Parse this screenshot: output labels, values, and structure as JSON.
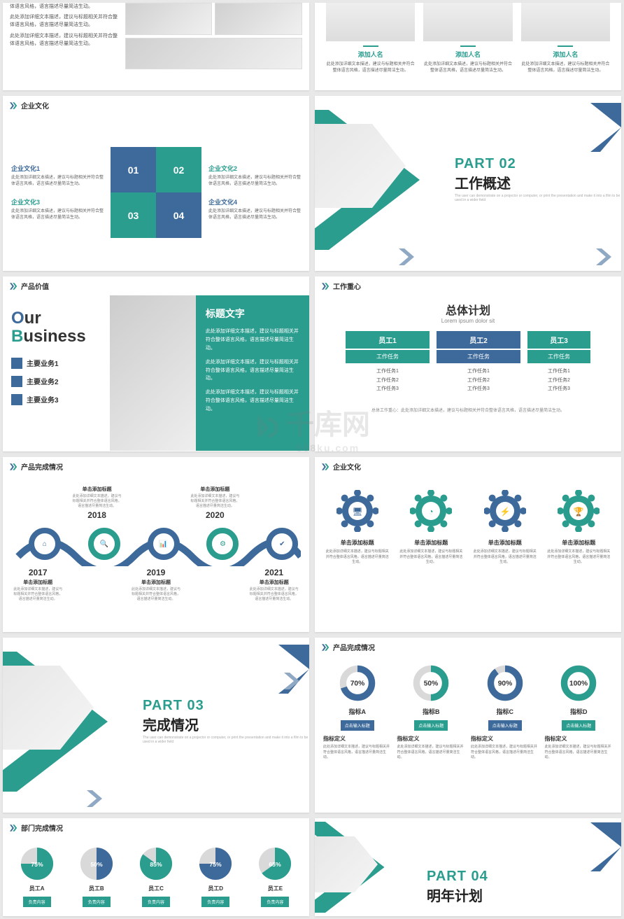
{
  "colors": {
    "teal": "#2a9d8f",
    "blue": "#3d6a9a",
    "grey": "#d0d0d0",
    "text": "#333333",
    "muted": "#777777"
  },
  "placeholder_long": "此处添加详细文本描述，建议与标题相关并符合整体语言风格，语言描述尽量简洁生动。",
  "placeholder_short": "此处添加详细文本描述，建议与标题相关并符合整体语言风格。",
  "slide1": {
    "lines": [
      "体语言风格，语言描述尽量简洁生动。",
      "此处添加详细文本描述，建议与标题相关并符合整体语言风格，语言描述尽量简洁生动。",
      "此处添加详细文本描述，建议与标题相关并符合整体语言风格，语言描述尽量简洁生动。"
    ]
  },
  "slide2": {
    "people": [
      {
        "name": "添加人名",
        "desc": "此处添加详细文本描述，建议与标题相关并符合整体语言风格，语言描述尽量简洁生动。"
      },
      {
        "name": "添加人名",
        "desc": "此处添加详细文本描述，建议与标题相关并符合整体语言风格，语言描述尽量简洁生动。"
      },
      {
        "name": "添加人名",
        "desc": "此处添加详细文本描述，建议与标题相关并符合整体语言风格，语言描述尽量简洁生动。"
      }
    ]
  },
  "slide3": {
    "header": "企业文化",
    "items": [
      {
        "title": "企业文化1",
        "color": "blue",
        "desc": "此处添加详细文本描述，建议与标题相关并符合整体语言风格，语言描述尽量简洁生动。"
      },
      {
        "title": "企业文化2",
        "color": "teal",
        "desc": "此处添加详细文本描述，建议与标题相关并符合整体语言风格，语言描述尽量简洁生动。"
      },
      {
        "title": "企业文化3",
        "color": "teal",
        "desc": "此处添加详细文本描述，建议与标题相关并符合整体语言风格，语言描述尽量简洁生动。"
      },
      {
        "title": "企业文化4",
        "color": "blue",
        "desc": "此处添加详细文本描述，建议与标题相关并符合整体语言风格，语言描述尽量简洁生动。"
      }
    ],
    "puzzle": [
      "01",
      "02",
      "03",
      "04"
    ]
  },
  "slide4": {
    "part_label": "PART 02",
    "part_title": "工作概述",
    "part_sub": "The user can demonstrate on a projector or computer, or print the presentation and make it into a film to be used in a wider field"
  },
  "slide5": {
    "header": "产品价值",
    "heading_o": "O",
    "heading_ur": "ur",
    "heading_b": "B",
    "heading_usiness": "usiness",
    "list": [
      "主要业务1",
      "主要业务2",
      "主要业务3"
    ],
    "right_title": "标题文字",
    "right_paras": [
      "此处添加详细文本描述，建议与标题相关并符合整体语言风格，语言描述尽量简洁生动。",
      "此处添加详细文本描述，建议与标题相关并符合整体语言风格，语言描述尽量简洁生动。",
      "此处添加详细文本描述，建议与标题相关并符合整体语言风格，语言描述尽量简洁生动。"
    ]
  },
  "slide6": {
    "header": "工作重心",
    "title": "总体计划",
    "subtitle": "Lorem ipsum dolor sit",
    "employees": [
      {
        "name": "员工1",
        "color": "teal",
        "task_label": "工作任务",
        "tasks": [
          "工作任务1",
          "工作任务2",
          "工作任务3"
        ]
      },
      {
        "name": "员工2",
        "color": "blue",
        "task_label": "工作任务",
        "tasks": [
          "工作任务1",
          "工作任务2",
          "工作任务3"
        ]
      },
      {
        "name": "员工3",
        "color": "teal",
        "task_label": "工作任务",
        "tasks": [
          "工作任务1",
          "工作任务2",
          "工作任务3"
        ],
        "thin": true
      }
    ],
    "footer": "总体工作重心：此处添加详细文本描述，建议与标题相关并符合整体语言风格，语言描述尽量简洁生动。"
  },
  "slide7": {
    "header": "产品完成情况",
    "click_title": "单击添加标题",
    "desc": "此处添加详细文本描述，建议与标题相关并符合整体语言风格，语言描述尽量简洁生动。",
    "years_top": [
      "2018",
      "2020"
    ],
    "years_bottom": [
      "2017",
      "2019",
      "2021"
    ],
    "circle_colors": [
      "#3d6a9a",
      "#2a9d8f",
      "#3d6a9a",
      "#2a9d8f",
      "#3d6a9a"
    ],
    "icons": [
      "home",
      "search",
      "bars",
      "gear",
      "check"
    ]
  },
  "slide8": {
    "header": "企业文化",
    "items": [
      {
        "color": "#3d6a9a",
        "icon": "monitor",
        "title": "单击添加标题",
        "desc": "此处添加详细文本描述，建议与标题相关并符合整体语言风格，语言描述尽量简洁生动。"
      },
      {
        "color": "#2a9d8f",
        "icon": "gauge",
        "title": "单击添加标题",
        "desc": "此处添加详细文本描述，建议与标题相关并符合整体语言风格，语言描述尽量简洁生动。"
      },
      {
        "color": "#3d6a9a",
        "icon": "plug",
        "title": "单击添加标题",
        "desc": "此处添加详细文本描述，建议与标题相关并符合整体语言风格，语言描述尽量简洁生动。"
      },
      {
        "color": "#2a9d8f",
        "icon": "trophy",
        "title": "单击添加标题",
        "desc": "此处添加详细文本描述，建议与标题相关并符合整体语言风格，语言描述尽量简洁生动。"
      }
    ]
  },
  "slide9": {
    "part_label": "PART 03",
    "part_title": "完成情况",
    "part_sub": "The user can demonstrate on a projector or computer, or print the presentation and make it into a film to be used in a wider field"
  },
  "slide10": {
    "header": "产品完成情况",
    "metrics": [
      {
        "pct": 70,
        "pct_label": "70%",
        "color": "#3d6a9a",
        "name": "指标A",
        "btn": "点击输入标题",
        "def": "指标定义",
        "desc": "此处添加详细文本描述，建议与标题相关并符合整体语言风格，语言描述尽量简洁生动。"
      },
      {
        "pct": 50,
        "pct_label": "50%",
        "color": "#2a9d8f",
        "name": "指标B",
        "btn": "点击输入标题",
        "def": "指标定义",
        "desc": "此处添加详细文本描述，建议与标题相关并符合整体语言风格，语言描述尽量简洁生动。"
      },
      {
        "pct": 90,
        "pct_label": "90%",
        "color": "#3d6a9a",
        "name": "指标C",
        "btn": "点击输入标题",
        "def": "指标定义",
        "desc": "此处添加详细文本描述，建议与标题相关并符合整体语言风格，语言描述尽量简洁生动。"
      },
      {
        "pct": 100,
        "pct_label": "100%",
        "color": "#2a9d8f",
        "name": "指标D",
        "btn": "点击输入标题",
        "def": "指标定义",
        "desc": "此处添加详细文本描述，建议与标题相关并符合整体语言风格，语言描述尽量简洁生动。"
      }
    ]
  },
  "slide11": {
    "header": "部门完成情况",
    "employees": [
      {
        "pct": 75,
        "pct_label": "75%",
        "color": "#2a9d8f",
        "name": "员工A",
        "btn": "负责内容"
      },
      {
        "pct": 50,
        "pct_label": "50%",
        "color": "#3d6a9a",
        "name": "员工B",
        "btn": "负责内容"
      },
      {
        "pct": 85,
        "pct_label": "85%",
        "color": "#2a9d8f",
        "name": "员工C",
        "btn": "负责内容"
      },
      {
        "pct": 75,
        "pct_label": "75%",
        "color": "#3d6a9a",
        "name": "员工D",
        "btn": "负责内容"
      },
      {
        "pct": 65,
        "pct_label": "65%",
        "color": "#2a9d8f",
        "name": "员工E",
        "btn": "负责内容"
      }
    ]
  },
  "slide12": {
    "part_label": "PART 04",
    "part_title": "明年计划",
    "part_sub": ""
  },
  "watermark": {
    "main": "千库网",
    "sub": "588ku.com"
  }
}
